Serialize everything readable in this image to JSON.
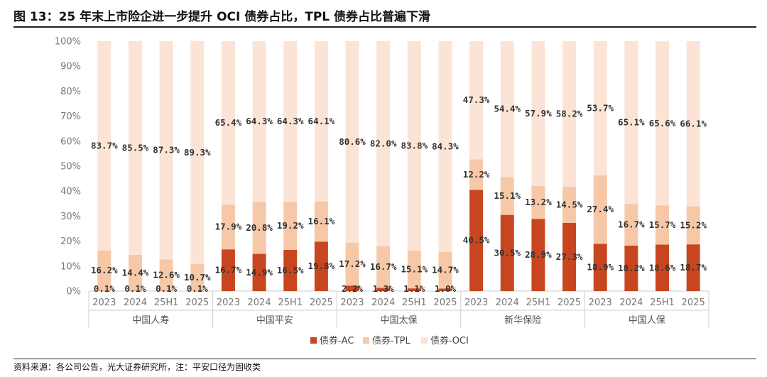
{
  "title": "图 13：25 年末上市险企进一步提升 OCI 债券占比，TPL 债券占比普遍下滑",
  "source": "资料来源：各公司公告，光大证券研究所，注：平安口径为固收类",
  "colors": {
    "ac": "#C8461F",
    "tpl": "#F6C8A8",
    "oci": "#FBE4D6"
  },
  "chart_data": {
    "type": "bar",
    "stacked": true,
    "percent": true,
    "ylim": [
      0,
      100
    ],
    "yticks": [
      "0%",
      "10%",
      "20%",
      "30%",
      "40%",
      "50%",
      "60%",
      "70%",
      "80%",
      "90%",
      "100%"
    ],
    "groups": [
      {
        "name": "中国人寿",
        "periods": [
          "2023",
          "2024",
          "25H1",
          "2025"
        ],
        "ac": [
          0.1,
          0.1,
          0.1,
          0.1
        ],
        "tpl": [
          16.2,
          14.4,
          12.6,
          10.7
        ],
        "oci": [
          83.7,
          85.5,
          87.3,
          89.3
        ],
        "ac_labels": [
          "0.1%",
          "0.1%",
          "0.1%",
          "0.1%"
        ],
        "tpl_labels": [
          "16.2%",
          "14.4%",
          "12.6%",
          "10.7%"
        ],
        "oci_labels": [
          "83.7%",
          "85.5%",
          "87.3%",
          "89.3%"
        ]
      },
      {
        "name": "中国平安",
        "periods": [
          "2023",
          "2024",
          "25H1",
          "2025"
        ],
        "ac": [
          16.7,
          14.9,
          16.5,
          19.8
        ],
        "tpl": [
          17.9,
          20.8,
          19.2,
          16.1
        ],
        "oci": [
          65.4,
          64.3,
          64.3,
          64.1
        ],
        "ac_labels": [
          "16.7%",
          "14.9%",
          "16.5%",
          "19.8%"
        ],
        "tpl_labels": [
          "17.9%",
          "20.8%",
          "19.2%",
          "16.1%"
        ],
        "oci_labels": [
          "65.4%",
          "64.3%",
          "64.3%",
          "64.1%"
        ]
      },
      {
        "name": "中国太保",
        "periods": [
          "2023",
          "2024",
          "25H1",
          "2025"
        ],
        "ac": [
          2.2,
          1.3,
          1.1,
          1.0
        ],
        "tpl": [
          17.2,
          16.7,
          15.1,
          14.7
        ],
        "oci": [
          80.6,
          82.0,
          83.8,
          84.3
        ],
        "ac_labels": [
          "2.2%",
          "1.3%",
          "1.1%",
          "1.0%"
        ],
        "tpl_labels": [
          "17.2%",
          "16.7%",
          "15.1%",
          "14.7%"
        ],
        "oci_labels": [
          "80.6%",
          "82.0%",
          "83.8%",
          "84.3%"
        ]
      },
      {
        "name": "新华保险",
        "periods": [
          "2023",
          "2024",
          "25H1",
          "2025"
        ],
        "ac": [
          40.5,
          30.5,
          28.9,
          27.3
        ],
        "tpl": [
          12.2,
          15.1,
          13.2,
          14.5
        ],
        "oci": [
          47.3,
          54.4,
          57.9,
          58.2
        ],
        "ac_labels": [
          "40.5%",
          "30.5%",
          "28.9%",
          "27.3%"
        ],
        "tpl_labels": [
          "12.2%",
          "15.1%",
          "13.2%",
          "14.5%"
        ],
        "oci_labels": [
          "47.3%",
          "54.4%",
          "57.9%",
          "58.2%"
        ]
      },
      {
        "name": "中国人保",
        "periods": [
          "2023",
          "2024",
          "25H1",
          "2025"
        ],
        "ac": [
          18.9,
          18.2,
          18.6,
          18.7
        ],
        "tpl": [
          27.4,
          16.7,
          15.7,
          15.2
        ],
        "oci": [
          53.7,
          65.1,
          65.6,
          66.1
        ],
        "ac_labels": [
          "18.9%",
          "18.2%",
          "18.6%",
          "18.7%"
        ],
        "tpl_labels": [
          "27.4%",
          "16.7%",
          "15.7%",
          "15.2%"
        ],
        "oci_labels": [
          "53.7%",
          "65.1%",
          "65.6%",
          "66.1%"
        ]
      }
    ],
    "legend": [
      "债券-AC",
      "债券-TPL",
      "债券-OCI"
    ]
  }
}
